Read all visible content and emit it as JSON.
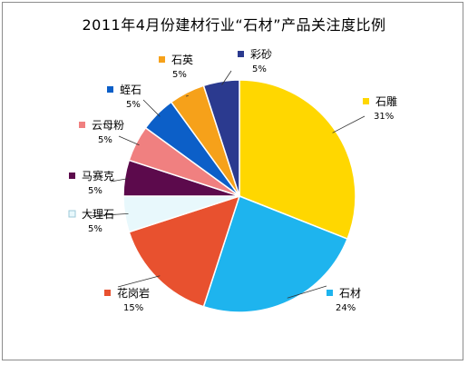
{
  "chart_data": {
    "type": "pie",
    "title": "2011年4月份建材行业“石材”产品关注度比例",
    "slices": [
      {
        "label": "石雕",
        "value": 31,
        "pct_text": "31%",
        "color": "#FFD700"
      },
      {
        "label": "石材",
        "value": 24,
        "pct_text": "24%",
        "color": "#1EB4EE"
      },
      {
        "label": "花岗岩",
        "value": 15,
        "pct_text": "15%",
        "color": "#E8512F"
      },
      {
        "label": "大理石",
        "value": 5,
        "pct_text": "5%",
        "color": "#E8F8FC"
      },
      {
        "label": "马赛克",
        "value": 5,
        "pct_text": "5%",
        "color": "#5C0A4C"
      },
      {
        "label": "云母粉",
        "value": 5,
        "pct_text": "5%",
        "color": "#F08080"
      },
      {
        "label": "蛭石",
        "value": 5,
        "pct_text": "5%",
        "color": "#0C5FC8"
      },
      {
        "label": "石英",
        "value": 5,
        "pct_text": "5%",
        "color": "#F6A11A"
      },
      {
        "label": "彩砂",
        "value": 5,
        "pct_text": "5%",
        "color": "#2B3A8F"
      }
    ],
    "legend_placement": "labels beside slices with leader lines"
  }
}
